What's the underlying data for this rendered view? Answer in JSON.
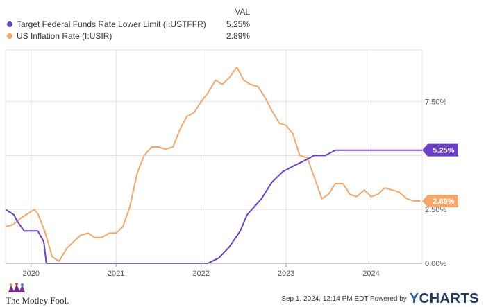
{
  "legend": {
    "header": "VAL",
    "items": [
      {
        "name": "Target Federal Funds Rate Lower Limit (I:USTFFR)",
        "value": "5.25%",
        "color": "#6a3fc8"
      },
      {
        "name": "US Inflation Rate (I:USIR)",
        "value": "2.89%",
        "color": "#f5a76b"
      }
    ]
  },
  "chart_data": {
    "type": "line",
    "x_unit": "year",
    "xlim": [
      2019.7,
      2024.6
    ],
    "ylim": [
      0,
      9.9
    ],
    "x_ticks": [
      {
        "value": 2020,
        "label": "2020"
      },
      {
        "value": 2021,
        "label": "2021"
      },
      {
        "value": 2022,
        "label": "2022"
      },
      {
        "value": 2023,
        "label": "2023"
      },
      {
        "value": 2024,
        "label": "2024"
      }
    ],
    "y_ticks": [
      {
        "value": 0,
        "label": "0.00%"
      },
      {
        "value": 2.5,
        "label": "2.50%"
      },
      {
        "value": 5.0,
        "label": ""
      },
      {
        "value": 7.5,
        "label": "7.50%"
      }
    ],
    "grid": true,
    "series": [
      {
        "name": "Target Federal Funds Rate Lower Limit (I:USTFFR)",
        "color": "#6a3fc8",
        "end_label": "5.25%",
        "points": [
          [
            2019.7,
            2.5
          ],
          [
            2019.8,
            2.25
          ],
          [
            2019.83,
            2.0
          ],
          [
            2019.92,
            1.5
          ],
          [
            2020.0,
            1.5
          ],
          [
            2020.08,
            1.5
          ],
          [
            2020.15,
            1.0
          ],
          [
            2020.18,
            0.0
          ],
          [
            2020.5,
            0.0
          ],
          [
            2021.0,
            0.0
          ],
          [
            2021.5,
            0.0
          ],
          [
            2022.0,
            0.0
          ],
          [
            2022.08,
            0.0
          ],
          [
            2022.21,
            0.25
          ],
          [
            2022.33,
            0.75
          ],
          [
            2022.46,
            1.5
          ],
          [
            2022.54,
            2.25
          ],
          [
            2022.71,
            3.0
          ],
          [
            2022.83,
            3.75
          ],
          [
            2022.96,
            4.25
          ],
          [
            2023.08,
            4.5
          ],
          [
            2023.21,
            4.75
          ],
          [
            2023.33,
            5.0
          ],
          [
            2023.46,
            5.0
          ],
          [
            2023.58,
            5.25
          ],
          [
            2024.0,
            5.25
          ],
          [
            2024.6,
            5.25
          ]
        ]
      },
      {
        "name": "US Inflation Rate (I:USIR)",
        "color": "#f5a76b",
        "end_label": "2.89%",
        "points": [
          [
            2019.7,
            1.7
          ],
          [
            2019.79,
            1.8
          ],
          [
            2019.88,
            2.1
          ],
          [
            2019.96,
            2.3
          ],
          [
            2020.04,
            2.5
          ],
          [
            2020.08,
            2.3
          ],
          [
            2020.16,
            1.5
          ],
          [
            2020.25,
            0.3
          ],
          [
            2020.33,
            0.1
          ],
          [
            2020.42,
            0.7
          ],
          [
            2020.5,
            1.0
          ],
          [
            2020.58,
            1.3
          ],
          [
            2020.67,
            1.4
          ],
          [
            2020.75,
            1.2
          ],
          [
            2020.83,
            1.2
          ],
          [
            2020.92,
            1.4
          ],
          [
            2021.0,
            1.4
          ],
          [
            2021.08,
            1.7
          ],
          [
            2021.16,
            2.6
          ],
          [
            2021.25,
            4.2
          ],
          [
            2021.33,
            5.0
          ],
          [
            2021.42,
            5.4
          ],
          [
            2021.5,
            5.4
          ],
          [
            2021.58,
            5.3
          ],
          [
            2021.67,
            5.4
          ],
          [
            2021.75,
            6.2
          ],
          [
            2021.83,
            6.8
          ],
          [
            2021.92,
            7.0
          ],
          [
            2022.0,
            7.5
          ],
          [
            2022.08,
            7.9
          ],
          [
            2022.17,
            8.5
          ],
          [
            2022.25,
            8.3
          ],
          [
            2022.33,
            8.6
          ],
          [
            2022.42,
            9.1
          ],
          [
            2022.5,
            8.5
          ],
          [
            2022.58,
            8.3
          ],
          [
            2022.67,
            8.2
          ],
          [
            2022.75,
            7.7
          ],
          [
            2022.83,
            7.1
          ],
          [
            2022.92,
            6.5
          ],
          [
            2023.0,
            6.4
          ],
          [
            2023.08,
            6.0
          ],
          [
            2023.16,
            5.0
          ],
          [
            2023.25,
            4.9
          ],
          [
            2023.33,
            4.0
          ],
          [
            2023.42,
            3.0
          ],
          [
            2023.5,
            3.2
          ],
          [
            2023.58,
            3.7
          ],
          [
            2023.67,
            3.7
          ],
          [
            2023.75,
            3.2
          ],
          [
            2023.83,
            3.1
          ],
          [
            2023.92,
            3.4
          ],
          [
            2024.0,
            3.1
          ],
          [
            2024.08,
            3.2
          ],
          [
            2024.16,
            3.5
          ],
          [
            2024.25,
            3.4
          ],
          [
            2024.33,
            3.3
          ],
          [
            2024.42,
            3.0
          ],
          [
            2024.5,
            2.9
          ],
          [
            2024.58,
            2.89
          ]
        ]
      }
    ]
  },
  "footer": {
    "brand": "The Motley Fool.",
    "timestamp": "Sep 1, 2024, 12:14 PM EDT Powered by",
    "ycharts_y": "Y",
    "ycharts_rest": "CHARTS"
  }
}
